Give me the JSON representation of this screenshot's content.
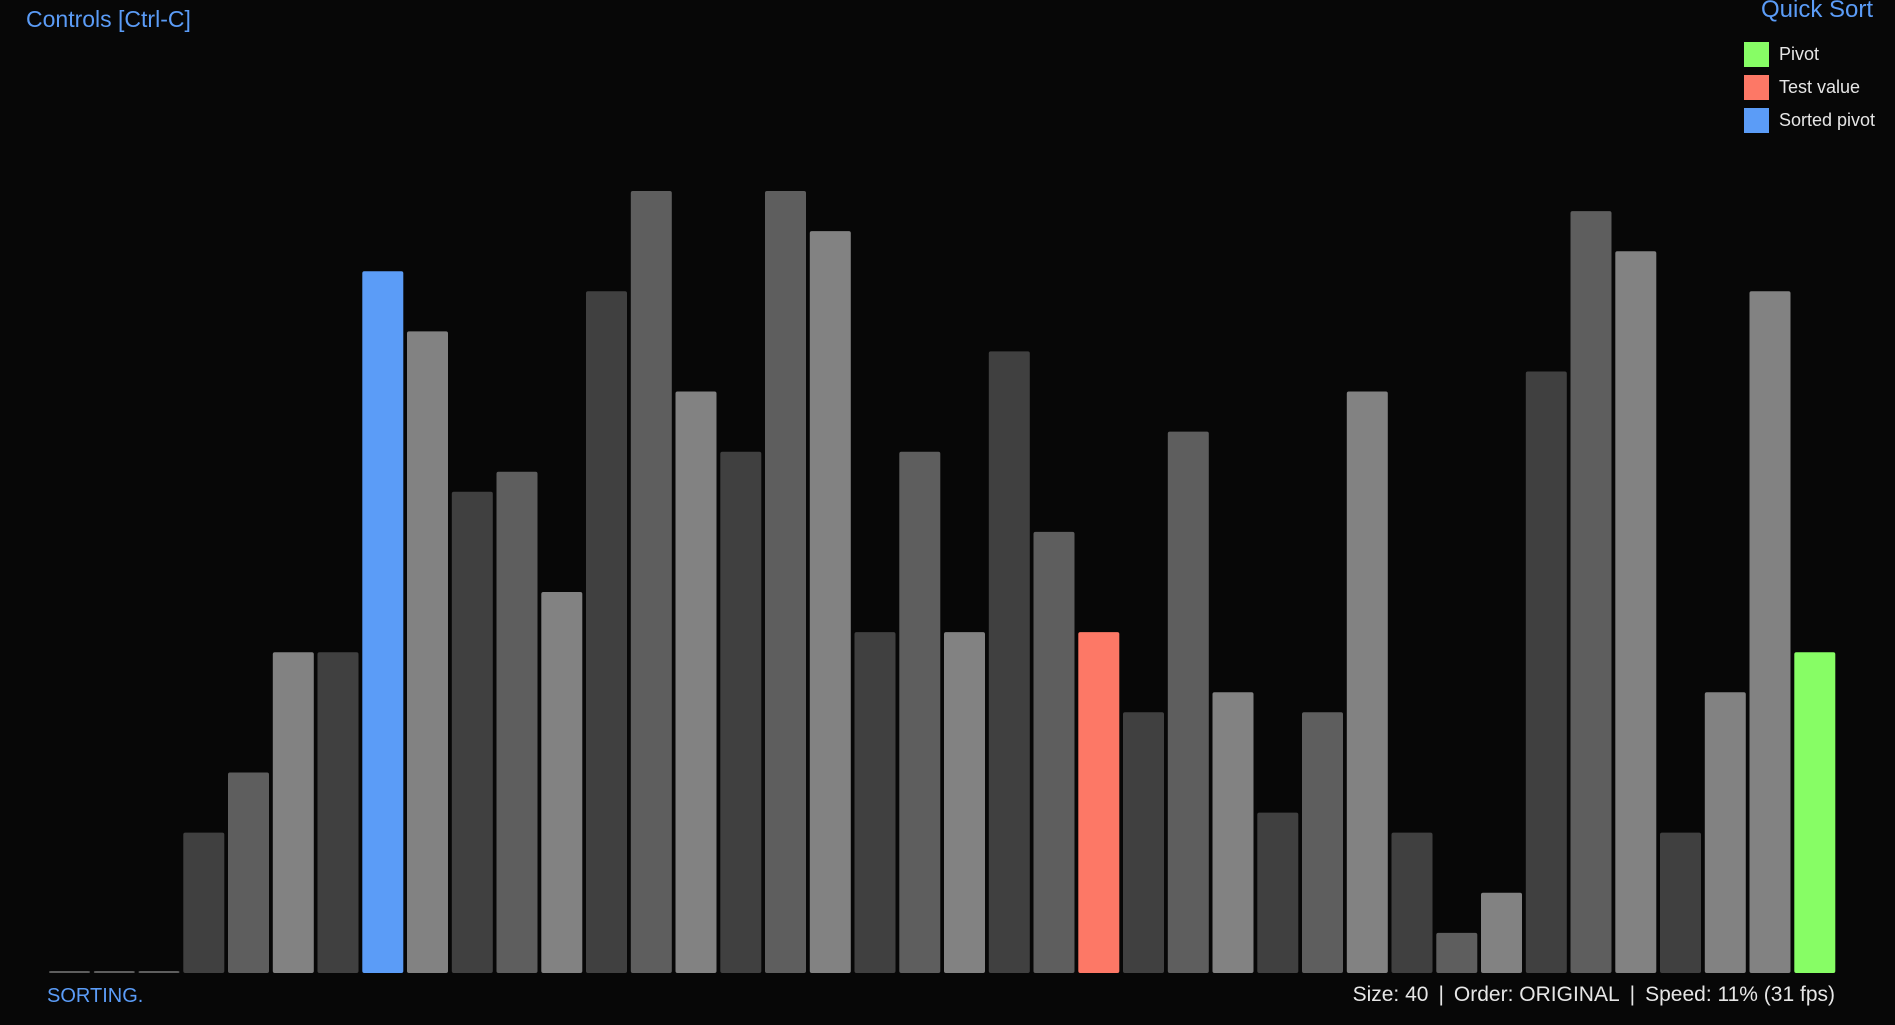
{
  "header": {
    "controls_label": "Controls [Ctrl-C]",
    "algorithm_title": "Quick Sort"
  },
  "legend": [
    {
      "label": "Pivot",
      "color": "#87fd65"
    },
    {
      "label": "Test value",
      "color": "#fd7866"
    },
    {
      "label": "Sorted pivot",
      "color": "#5b9cf7"
    }
  ],
  "status": {
    "state": "SORTING.",
    "size": "Size: 40",
    "order": "Order: ORIGINAL",
    "speed": "Speed: 11% (31 fps)",
    "separator": "|"
  },
  "colors": {
    "background": "#070707",
    "pivot": "#87fd65",
    "test": "#fd7866",
    "sorted_pivot": "#5b9cf7",
    "dark": "#404040",
    "mid": "#5e5e5e",
    "light": "#828282"
  },
  "chart_data": {
    "type": "bar",
    "size": 40,
    "max_value": 39,
    "values": [
      0,
      0,
      0,
      7,
      10,
      16,
      16,
      35,
      32,
      24,
      25,
      19,
      34,
      39,
      29,
      26,
      39,
      37,
      17,
      26,
      17,
      31,
      22,
      17,
      13,
      27,
      14,
      8,
      13,
      29,
      7,
      2,
      4,
      30,
      38,
      36,
      7,
      14,
      34,
      16
    ],
    "states": [
      "normal",
      "normal",
      "normal",
      "normal",
      "normal",
      "normal",
      "normal",
      "sorted_pivot",
      "normal",
      "normal",
      "normal",
      "normal",
      "normal",
      "normal",
      "normal",
      "normal",
      "normal",
      "normal",
      "normal",
      "normal",
      "normal",
      "normal",
      "normal",
      "test",
      "normal",
      "normal",
      "normal",
      "normal",
      "normal",
      "normal",
      "normal",
      "normal",
      "normal",
      "normal",
      "normal",
      "normal",
      "normal",
      "normal",
      "normal",
      "pivot"
    ],
    "shades": [
      "mid",
      "mid",
      "mid",
      "dark",
      "mid",
      "light",
      "dark",
      "blue",
      "light",
      "dark",
      "mid",
      "light",
      "dark",
      "mid",
      "light",
      "dark",
      "mid",
      "light",
      "dark",
      "mid",
      "light",
      "dark",
      "mid",
      "red",
      "dark",
      "mid",
      "light",
      "dark",
      "mid",
      "light",
      "dark",
      "mid",
      "light",
      "dark",
      "mid",
      "light",
      "dark",
      "light",
      "light",
      "green"
    ]
  }
}
